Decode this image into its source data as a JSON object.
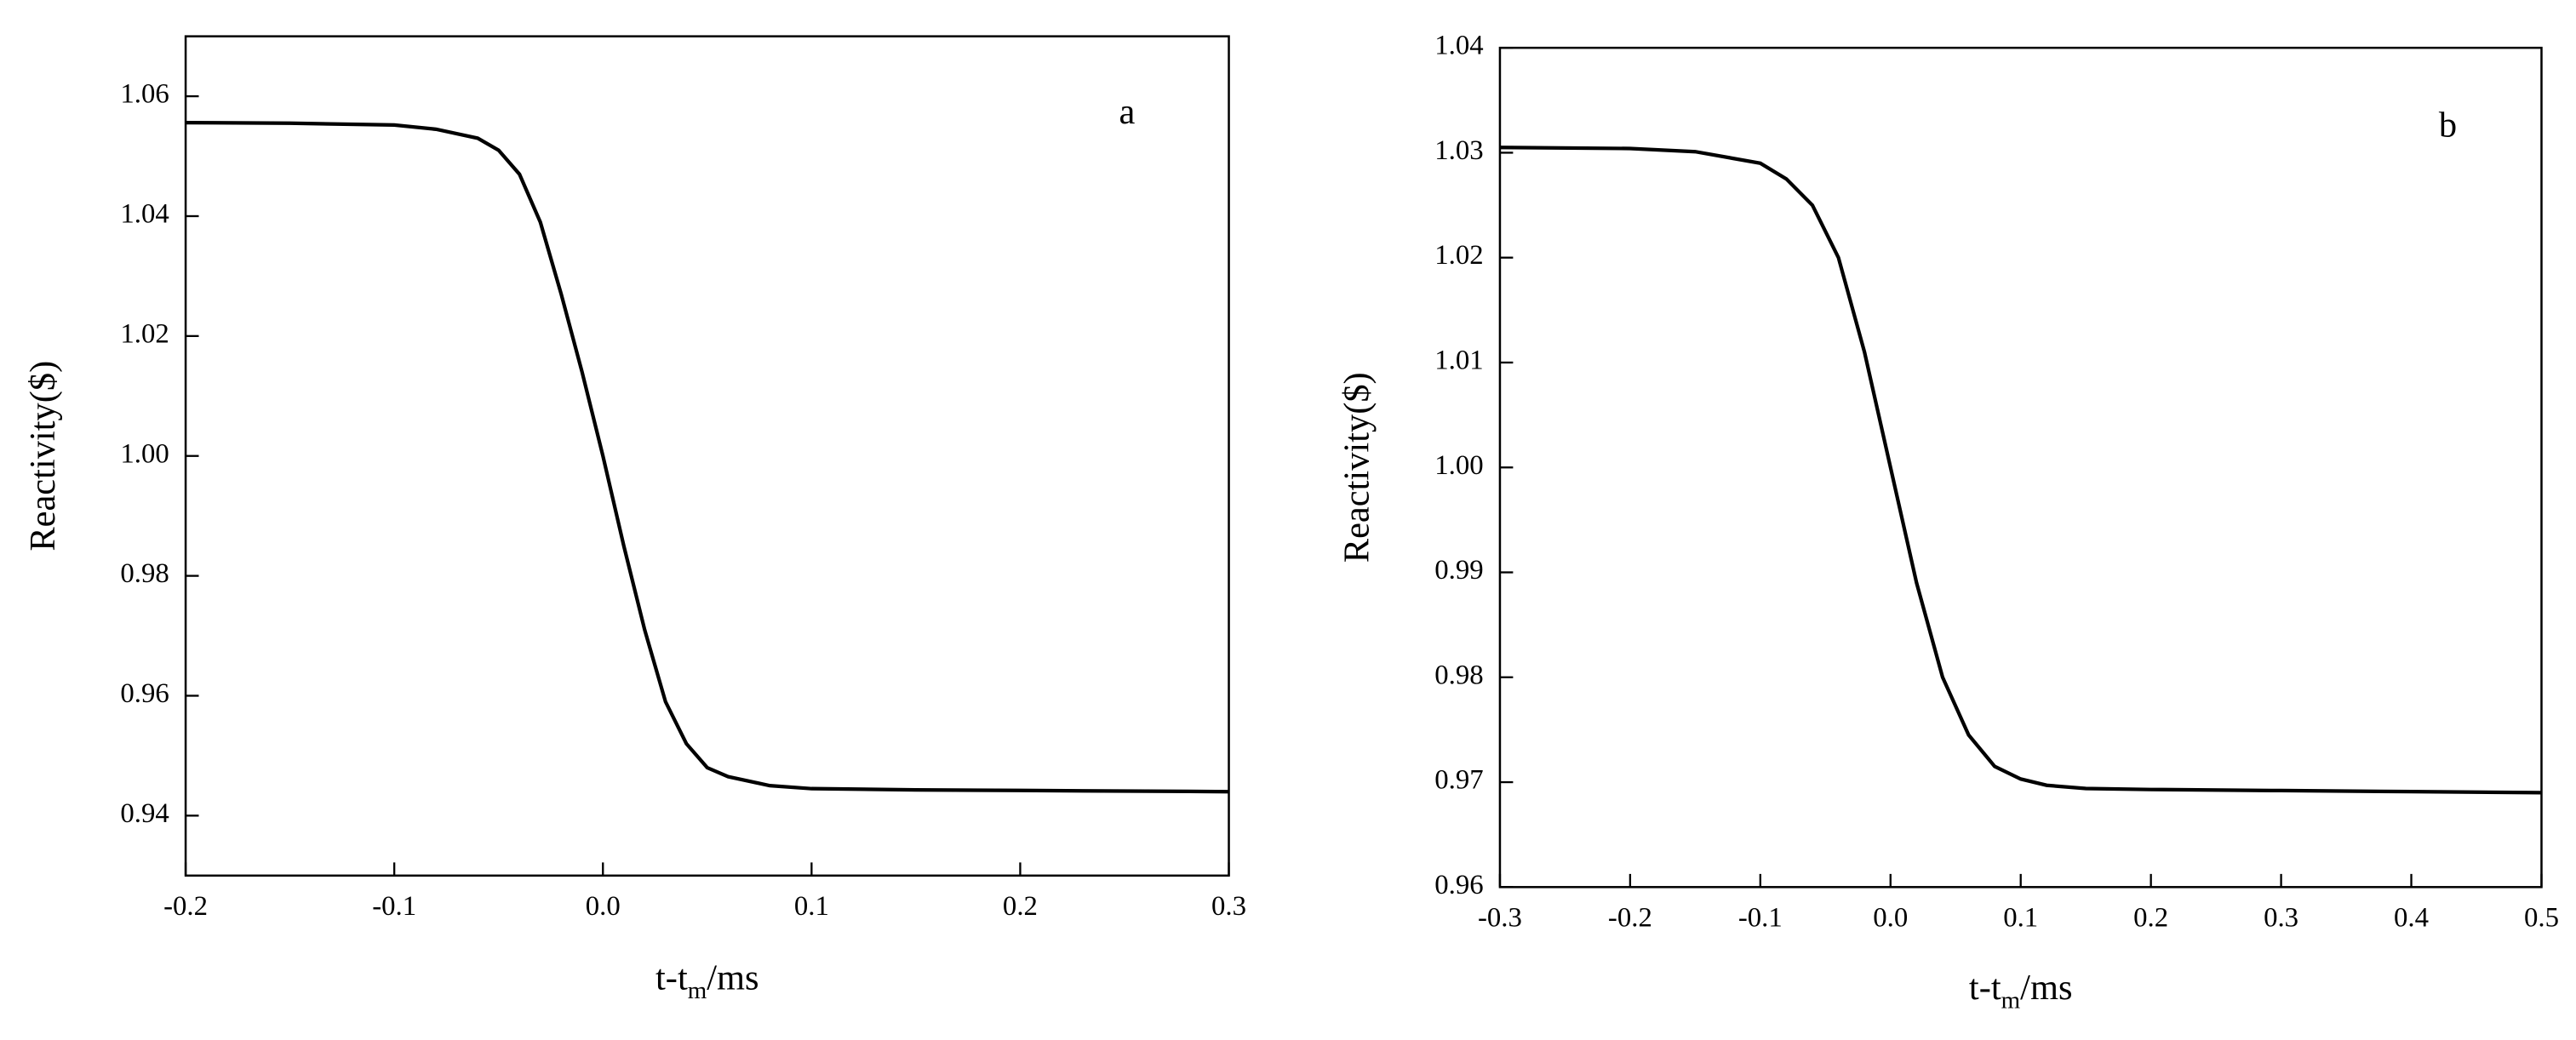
{
  "chart_data": [
    {
      "type": "line",
      "label": "a",
      "y_label": "Reactivity($)",
      "x_label": [
        "t-t",
        "m",
        "/ms"
      ],
      "xlim": [
        -0.2,
        0.3
      ],
      "ylim": [
        0.93,
        1.07
      ],
      "xticks": [
        -0.2,
        -0.1,
        {
          "value": 0,
          "label": "0.0"
        },
        0.1,
        0.2,
        0.3
      ],
      "yticks": [
        0.94,
        0.96,
        0.98,
        {
          "value": 1,
          "label": "1.00"
        },
        1.02,
        1.04,
        1.06
      ],
      "color": "#000000",
      "x": [
        -0.2,
        -0.15,
        -0.1,
        -0.08,
        -0.06,
        -0.05,
        -0.04,
        -0.03,
        -0.02,
        -0.01,
        0,
        0.01,
        0.02,
        0.03,
        0.04,
        0.05,
        0.06,
        0.08,
        0.1,
        0.15,
        0.2,
        0.25,
        0.3
      ],
      "values": [
        1.0556,
        1.0555,
        1.0552,
        1.0545,
        1.053,
        1.051,
        1.047,
        1.039,
        1.027,
        1.014,
        1.0,
        0.985,
        0.971,
        0.959,
        0.952,
        0.948,
        0.9465,
        0.945,
        0.9445,
        0.9443,
        0.9442,
        0.9441,
        0.944
      ]
    },
    {
      "type": "line",
      "label": "b",
      "y_label": "Reactivity($)",
      "x_label": [
        "t-t",
        "m",
        "/ms"
      ],
      "xlim": [
        -0.3,
        0.5
      ],
      "ylim": [
        0.96,
        1.04
      ],
      "xticks": [
        -0.3,
        -0.2,
        -0.1,
        {
          "value": 0,
          "label": "0.0"
        },
        0.1,
        0.2,
        0.3,
        0.4,
        0.5
      ],
      "yticks": [
        0.96,
        0.97,
        0.98,
        0.99,
        {
          "value": 1,
          "label": "1.00"
        },
        1.01,
        1.02,
        1.03,
        1.04
      ],
      "color": "#000000",
      "x": [
        -0.3,
        -0.2,
        -0.15,
        -0.1,
        -0.08,
        -0.06,
        -0.04,
        -0.02,
        0,
        0.02,
        0.04,
        0.06,
        0.08,
        0.1,
        0.12,
        0.15,
        0.2,
        0.3,
        0.4,
        0.5
      ],
      "values": [
        1.0305,
        1.0304,
        1.0301,
        1.029,
        1.0275,
        1.025,
        1.02,
        1.011,
        1.0,
        0.989,
        0.98,
        0.9745,
        0.9715,
        0.9703,
        0.9697,
        0.9694,
        0.9693,
        0.9692,
        0.9691,
        0.969
      ]
    }
  ]
}
